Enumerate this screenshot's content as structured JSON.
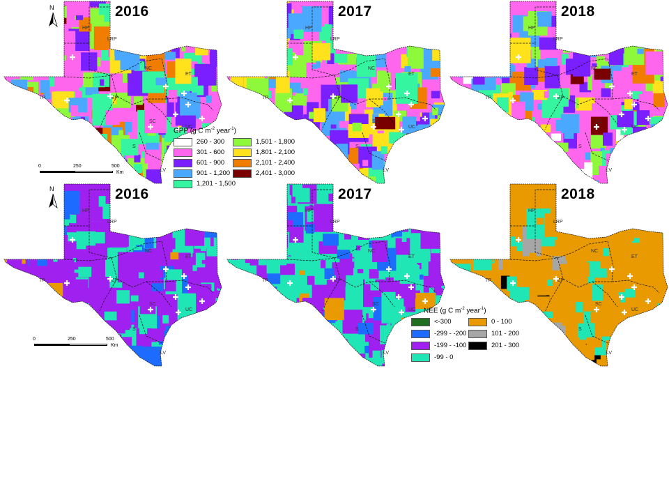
{
  "panels": [
    {
      "year": "2016",
      "variable": "GPP",
      "colors": [
        "#ff66ee",
        "#7a1fff",
        "#4aa8ff",
        "#35f5a0",
        "#8ef83a",
        "#ffe21c",
        "#f07c00",
        "#7a0000"
      ],
      "weights": [
        2,
        3,
        3,
        3,
        3,
        2,
        1,
        0.5
      ]
    },
    {
      "year": "2017",
      "variable": "GPP",
      "colors": [
        "#ff66ee",
        "#7a1fff",
        "#4aa8ff",
        "#35f5a0",
        "#8ef83a",
        "#ffe21c",
        "#f07c00",
        "#7a0000"
      ],
      "weights": [
        2,
        3,
        3,
        2,
        3,
        3,
        1,
        0.5
      ]
    },
    {
      "year": "2018",
      "variable": "GPP",
      "colors": [
        "#ff66ee",
        "#7a1fff",
        "#4aa8ff",
        "#35f5a0",
        "#8ef83a",
        "#ffe21c",
        "#f07c00",
        "#7a0000",
        "#ffffff"
      ],
      "weights": [
        3,
        3,
        3,
        2,
        2,
        2,
        1,
        0.5,
        0.3
      ]
    },
    {
      "year": "2016",
      "variable": "NEE",
      "colors": [
        "#a020f0",
        "#1fe6b4",
        "#1e6bff",
        "#e89a00"
      ],
      "weights": [
        5,
        3,
        1.2,
        0.3
      ]
    },
    {
      "year": "2017",
      "variable": "NEE",
      "colors": [
        "#1fe6b4",
        "#a020f0",
        "#1e6bff",
        "#e89a00"
      ],
      "weights": [
        4,
        3,
        0.6,
        0.3
      ]
    },
    {
      "year": "2018",
      "variable": "NEE",
      "colors": [
        "#e89a00",
        "#1fe6b4",
        "#a6a6a6",
        "#000000"
      ],
      "weights": [
        5,
        1.2,
        0.3,
        0.05
      ]
    }
  ],
  "region_labels": [
    "HP",
    "LRP",
    "NC",
    "ET",
    "TP",
    "EP",
    "SC",
    "UC",
    "S",
    "LV"
  ],
  "gpp_legend": {
    "title_prefix": "GPP (g C m",
    "title_sup1": "-2",
    "title_mid": " year",
    "title_sup2": "-1",
    "title_suffix": ")",
    "items": [
      {
        "label": "260 - 300",
        "color": "#ffffff"
      },
      {
        "label": "301 - 600",
        "color": "#ff66ee"
      },
      {
        "label": "601 - 900",
        "color": "#7a1fff"
      },
      {
        "label": "901 - 1,200",
        "color": "#4aa8ff"
      },
      {
        "label": "1,201 - 1,500",
        "color": "#35f5a0"
      },
      {
        "label": "1,501 - 1,800",
        "color": "#8ef83a"
      },
      {
        "label": "1,801 - 2,100",
        "color": "#ffe21c"
      },
      {
        "label": "2,101 - 2,400",
        "color": "#f07c00"
      },
      {
        "label": "2,401 - 3,000",
        "color": "#7a0000"
      }
    ]
  },
  "nee_legend": {
    "title_prefix": "NEE (g C m",
    "title_sup1": "-2",
    "title_mid": " year",
    "title_sup2": "-1",
    "title_suffix": ")",
    "items": [
      {
        "label": "<-300",
        "color": "#1f6e1f"
      },
      {
        "label": "-299 - -200",
        "color": "#1e6bff"
      },
      {
        "label": "-199 - -100",
        "color": "#a020f0"
      },
      {
        "label": "-99 - 0",
        "color": "#1fe6b4"
      },
      {
        "label": "0 - 100",
        "color": "#e89a00"
      },
      {
        "label": "101 - 200",
        "color": "#a6a6a6"
      },
      {
        "label": "201 - 300",
        "color": "#000000"
      }
    ]
  },
  "scale_bar": {
    "ticks": [
      "0",
      "250",
      "500"
    ],
    "unit": "Km"
  },
  "north_arrow": {
    "label": "N",
    "icon": "north-arrow-icon"
  }
}
